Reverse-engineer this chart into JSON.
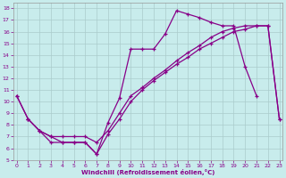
{
  "xlabel": "Windchill (Refroidissement éolien,°C)",
  "bg_color": "#c8ecec",
  "grid_color": "#aacccc",
  "line_color": "#880088",
  "xlim": [
    0,
    23
  ],
  "ylim": [
    5,
    18.5
  ],
  "xticks": [
    0,
    1,
    2,
    3,
    4,
    5,
    6,
    7,
    8,
    9,
    10,
    11,
    12,
    13,
    14,
    15,
    16,
    17,
    18,
    19,
    20,
    21,
    22,
    23
  ],
  "yticks": [
    5,
    6,
    7,
    8,
    9,
    10,
    11,
    12,
    13,
    14,
    15,
    16,
    17,
    18
  ],
  "curve1_x": [
    0,
    1,
    2,
    3,
    4,
    5,
    6,
    7,
    8,
    9,
    10,
    11,
    12,
    13,
    14,
    15,
    16,
    17,
    18,
    19,
    20,
    21
  ],
  "curve1_y": [
    10.5,
    8.5,
    7.5,
    6.5,
    6.5,
    6.5,
    6.5,
    5.5,
    8.2,
    10.3,
    14.5,
    14.5,
    14.5,
    15.8,
    17.8,
    17.5,
    17.2,
    16.8,
    16.5,
    16.5,
    13.0,
    10.5
  ],
  "curve2_x": [
    0,
    1,
    2,
    3,
    4,
    5,
    6,
    7,
    8,
    9,
    10,
    11,
    12,
    13,
    14,
    15,
    16,
    17,
    18,
    19,
    20,
    21,
    22,
    23
  ],
  "curve2_y": [
    10.5,
    8.5,
    7.5,
    7.0,
    7.0,
    7.0,
    7.0,
    6.5,
    7.5,
    9.0,
    10.5,
    11.2,
    12.0,
    12.7,
    13.5,
    14.2,
    14.8,
    15.5,
    16.0,
    16.3,
    16.5,
    16.5,
    16.5,
    8.5
  ],
  "curve3_x": [
    1,
    2,
    3,
    4,
    5,
    6,
    7,
    8,
    9,
    10,
    11,
    12,
    13,
    14,
    15,
    16,
    17,
    18,
    19,
    20,
    21,
    22,
    23
  ],
  "curve3_y": [
    8.5,
    7.5,
    7.0,
    6.5,
    6.5,
    6.5,
    5.5,
    7.2,
    8.5,
    10.0,
    11.0,
    11.8,
    12.5,
    13.2,
    13.8,
    14.5,
    15.0,
    15.5,
    16.0,
    16.2,
    16.5,
    16.5,
    8.5
  ]
}
